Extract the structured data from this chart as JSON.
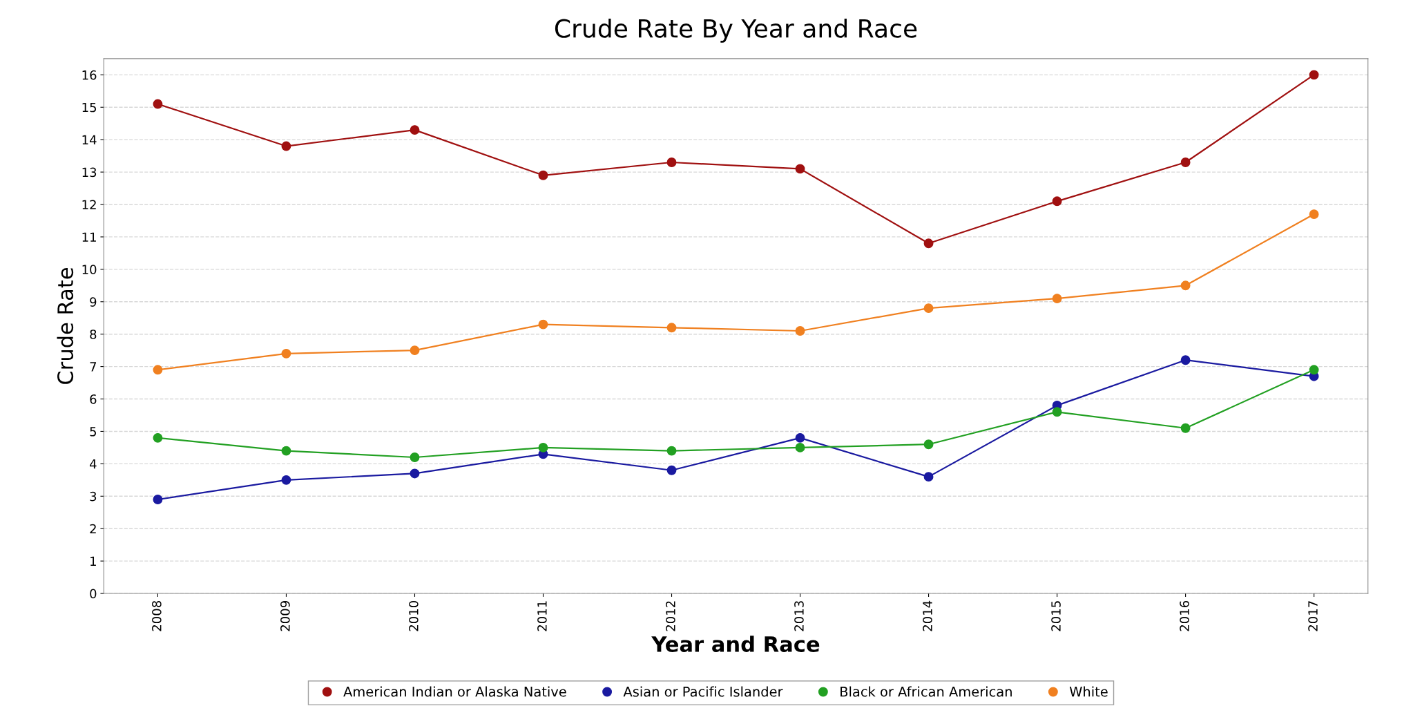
{
  "chart_data": {
    "type": "line",
    "title": "Crude Rate By Year and Race",
    "xlabel": "Year and Race",
    "ylabel": "Crude Rate",
    "categories": [
      "2008",
      "2009",
      "2010",
      "2011",
      "2012",
      "2013",
      "2014",
      "2015",
      "2016",
      "2017"
    ],
    "series": [
      {
        "name": "American Indian or Alaska Native",
        "color": "#a01010",
        "values": [
          15.1,
          13.8,
          14.3,
          12.9,
          13.3,
          13.1,
          10.8,
          12.1,
          13.3,
          16.0
        ]
      },
      {
        "name": "Asian or Pacific Islander",
        "color": "#1a1aa0",
        "values": [
          2.9,
          3.5,
          3.7,
          4.3,
          3.8,
          4.8,
          3.6,
          5.8,
          7.2,
          6.7
        ]
      },
      {
        "name": "Black or African American",
        "color": "#22a022",
        "values": [
          4.8,
          4.4,
          4.2,
          4.5,
          4.4,
          4.5,
          4.6,
          5.6,
          5.1,
          6.9
        ]
      },
      {
        "name": "White",
        "color": "#f08020",
        "values": [
          6.9,
          7.4,
          7.5,
          8.3,
          8.2,
          8.1,
          8.8,
          9.1,
          9.5,
          11.7
        ]
      }
    ],
    "ylim": [
      0,
      16.5
    ],
    "yticks": [
      0,
      1,
      2,
      3,
      4,
      5,
      6,
      7,
      8,
      9,
      10,
      11,
      12,
      13,
      14,
      15,
      16
    ],
    "grid": "y",
    "legend": "bottom",
    "marker": "circle",
    "line_style": "solid"
  }
}
